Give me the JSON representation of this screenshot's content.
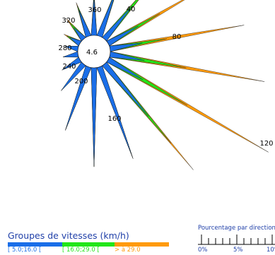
{
  "chart_data": {
    "type": "wind-rose",
    "center_value": "4.6",
    "direction_labels": [
      "360",
      "40",
      "80",
      "120",
      "160",
      "200",
      "240",
      "280",
      "320"
    ],
    "speed_groups_title": "Groupes de vitesses (km/h)",
    "speed_groups": [
      {
        "label": "[ 5.0;16.0 [",
        "color": "#1a6ee8"
      },
      {
        "label": "[ 16.0;29.0 [",
        "color": "#22e61a"
      },
      {
        "label": "> à 29.0",
        "color": "#ff9a0a"
      }
    ],
    "percent_scale_title": "Pourcentage par direction",
    "percent_scale_ticks": [
      "0%",
      "5%",
      "10%"
    ],
    "directions_deg": [
      0,
      20,
      40,
      60,
      80,
      100,
      120,
      140,
      160,
      180,
      200,
      220,
      240,
      260,
      280,
      300,
      320,
      340
    ],
    "cumulative_percent": {
      "group_1": [
        3.5,
        4.5,
        4.0,
        3.2,
        3.0,
        3.2,
        3.7,
        6.3,
        8.8,
        9.0,
        6.2,
        3.2,
        1.9,
        1.4,
        1.2,
        1.1,
        1.4,
        2.6
      ],
      "group_2": [
        3.8,
        5.3,
        6.5,
        5.5,
        5.3,
        7.1,
        8.4,
        9.5,
        8.9,
        9.1,
        6.2,
        3.2,
        1.9,
        1.4,
        1.2,
        1.4,
        2.0,
        3.0
      ],
      "group_3": [
        4.1,
        5.6,
        7.9,
        10.0,
        12.5,
        14.4,
        17.0,
        12.7,
        9.0,
        9.1,
        6.2,
        3.2,
        1.9,
        1.4,
        1.2,
        1.7,
        2.5,
        3.3
      ]
    }
  }
}
